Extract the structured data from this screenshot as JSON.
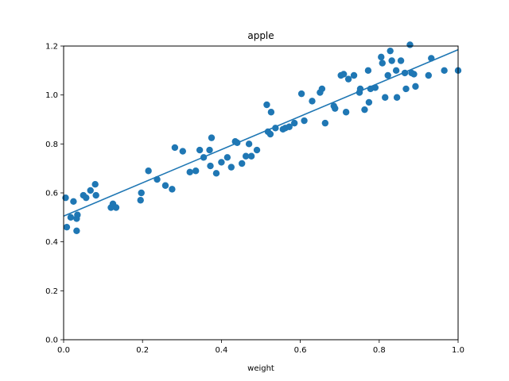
{
  "chart_data": {
    "type": "scatter",
    "title": "apple",
    "xlabel": "weight",
    "ylabel": "",
    "xlim": [
      0.0,
      1.0
    ],
    "ylim": [
      0.0,
      1.2
    ],
    "xticks": [
      "0.0",
      "0.2",
      "0.4",
      "0.6",
      "0.8",
      "1.0"
    ],
    "yticks": [
      "0.0",
      "0.2",
      "0.4",
      "0.6",
      "0.8",
      "1.0",
      "1.2"
    ],
    "grid": false,
    "color": "#1f77b4",
    "series": [
      {
        "kind": "points",
        "points": [
          [
            0.005,
            0.58
          ],
          [
            0.008,
            0.46
          ],
          [
            0.018,
            0.5
          ],
          [
            0.025,
            0.565
          ],
          [
            0.033,
            0.495
          ],
          [
            0.033,
            0.445
          ],
          [
            0.035,
            0.51
          ],
          [
            0.05,
            0.59
          ],
          [
            0.057,
            0.58
          ],
          [
            0.068,
            0.61
          ],
          [
            0.08,
            0.635
          ],
          [
            0.082,
            0.59
          ],
          [
            0.12,
            0.54
          ],
          [
            0.125,
            0.555
          ],
          [
            0.133,
            0.54
          ],
          [
            0.195,
            0.57
          ],
          [
            0.197,
            0.6
          ],
          [
            0.215,
            0.69
          ],
          [
            0.237,
            0.655
          ],
          [
            0.258,
            0.63
          ],
          [
            0.275,
            0.615
          ],
          [
            0.282,
            0.785
          ],
          [
            0.302,
            0.77
          ],
          [
            0.32,
            0.685
          ],
          [
            0.335,
            0.69
          ],
          [
            0.345,
            0.775
          ],
          [
            0.355,
            0.745
          ],
          [
            0.37,
            0.775
          ],
          [
            0.372,
            0.71
          ],
          [
            0.375,
            0.825
          ],
          [
            0.387,
            0.68
          ],
          [
            0.4,
            0.725
          ],
          [
            0.415,
            0.745
          ],
          [
            0.425,
            0.705
          ],
          [
            0.435,
            0.81
          ],
          [
            0.44,
            0.805
          ],
          [
            0.452,
            0.72
          ],
          [
            0.462,
            0.75
          ],
          [
            0.47,
            0.8
          ],
          [
            0.476,
            0.75
          ],
          [
            0.49,
            0.775
          ],
          [
            0.515,
            0.96
          ],
          [
            0.518,
            0.85
          ],
          [
            0.524,
            0.84
          ],
          [
            0.526,
            0.93
          ],
          [
            0.537,
            0.865
          ],
          [
            0.556,
            0.86
          ],
          [
            0.562,
            0.865
          ],
          [
            0.572,
            0.87
          ],
          [
            0.585,
            0.885
          ],
          [
            0.603,
            1.005
          ],
          [
            0.61,
            0.895
          ],
          [
            0.63,
            0.975
          ],
          [
            0.65,
            1.01
          ],
          [
            0.655,
            1.025
          ],
          [
            0.663,
            0.885
          ],
          [
            0.685,
            0.955
          ],
          [
            0.688,
            0.945
          ],
          [
            0.703,
            1.08
          ],
          [
            0.71,
            1.085
          ],
          [
            0.716,
            0.93
          ],
          [
            0.722,
            1.065
          ],
          [
            0.736,
            1.08
          ],
          [
            0.75,
            1.01
          ],
          [
            0.752,
            1.025
          ],
          [
            0.763,
            0.94
          ],
          [
            0.772,
            1.1
          ],
          [
            0.774,
            0.97
          ],
          [
            0.778,
            1.025
          ],
          [
            0.79,
            1.03
          ],
          [
            0.805,
            1.155
          ],
          [
            0.808,
            1.13
          ],
          [
            0.815,
            0.99
          ],
          [
            0.822,
            1.08
          ],
          [
            0.828,
            1.18
          ],
          [
            0.832,
            1.14
          ],
          [
            0.843,
            1.1
          ],
          [
            0.845,
            0.99
          ],
          [
            0.855,
            1.14
          ],
          [
            0.865,
            1.09
          ],
          [
            0.868,
            1.025
          ],
          [
            0.878,
            1.205
          ],
          [
            0.882,
            1.09
          ],
          [
            0.888,
            1.085
          ],
          [
            0.892,
            1.035
          ],
          [
            0.925,
            1.08
          ],
          [
            0.932,
            1.15
          ],
          [
            0.965,
            1.1
          ],
          [
            1.0,
            1.1
          ]
        ]
      },
      {
        "kind": "line",
        "points": [
          [
            0.0,
            0.505
          ],
          [
            1.0,
            1.185
          ]
        ]
      }
    ]
  }
}
